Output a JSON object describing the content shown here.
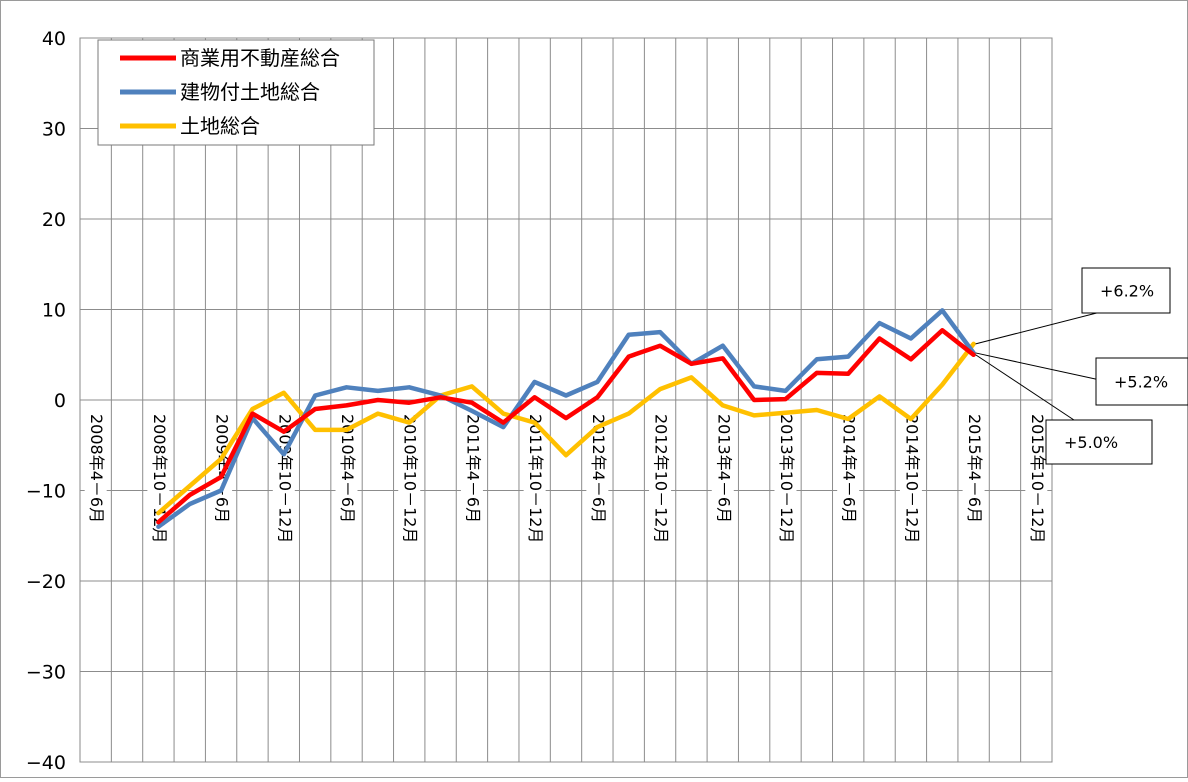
{
  "chart_data": {
    "type": "line",
    "title": "",
    "xlabel": "",
    "ylabel": "",
    "ylim": [
      -40,
      40
    ],
    "yticks": [
      40,
      30,
      20,
      10,
      0,
      -10,
      -20,
      -30,
      -40
    ],
    "grid": true,
    "legend_position": "top-left",
    "x_labels": [
      "2008年4－6月",
      "2008年10－12月",
      "2009年4－6月",
      "2009年10－12月",
      "2010年4－6月",
      "2010年10－12月",
      "2011年4－6月",
      "2011年10－12月",
      "2012年4－6月",
      "2012年10－12月",
      "2013年4－6月",
      "2013年10－12月",
      "2014年4－6月",
      "2014年10－12月",
      "2015年4－6月",
      "2015年10－12月"
    ],
    "quarters_count": 31,
    "series": [
      {
        "name": "商業用不動産総合",
        "color": "#ff0000",
        "start_index": 2,
        "values": [
          -13.5,
          -10.5,
          -8.5,
          -1.5,
          -3.5,
          -1.0,
          -0.6,
          0.0,
          -0.3,
          0.3,
          -0.3,
          -2.5,
          0.3,
          -2.0,
          0.3,
          4.8,
          6.0,
          4.0,
          4.6,
          0.0,
          0.1,
          3.0,
          2.9,
          6.8,
          4.5,
          7.7,
          5.0
        ]
      },
      {
        "name": "建物付土地総合",
        "color": "#4f81bd",
        "start_index": 2,
        "values": [
          -14.0,
          -11.5,
          -10.0,
          -2.0,
          -6.0,
          0.5,
          1.4,
          1.0,
          1.4,
          0.5,
          -1.2,
          -3.0,
          2.0,
          0.5,
          2.0,
          7.2,
          7.5,
          4.0,
          6.0,
          1.5,
          1.0,
          4.5,
          4.8,
          8.5,
          6.8,
          9.9,
          5.2
        ]
      },
      {
        "name": "土地総合",
        "color": "#ffc000",
        "start_index": 2,
        "values": [
          -12.5,
          -9.5,
          -6.5,
          -1.0,
          0.8,
          -3.3,
          -3.3,
          -1.5,
          -2.5,
          0.5,
          1.5,
          -1.5,
          -2.5,
          -6.1,
          -3.0,
          -1.5,
          1.2,
          2.5,
          -0.6,
          -1.7,
          -1.4,
          -1.1,
          -2.1,
          0.4,
          -2.1,
          1.7,
          6.2
        ]
      }
    ],
    "annotations": [
      {
        "text": "+6.2%",
        "series": "土地総合"
      },
      {
        "text": "+5.2%",
        "series": "建物付土地総合"
      },
      {
        "text": "+5.0%",
        "series": "商業用不動産総合"
      }
    ]
  }
}
